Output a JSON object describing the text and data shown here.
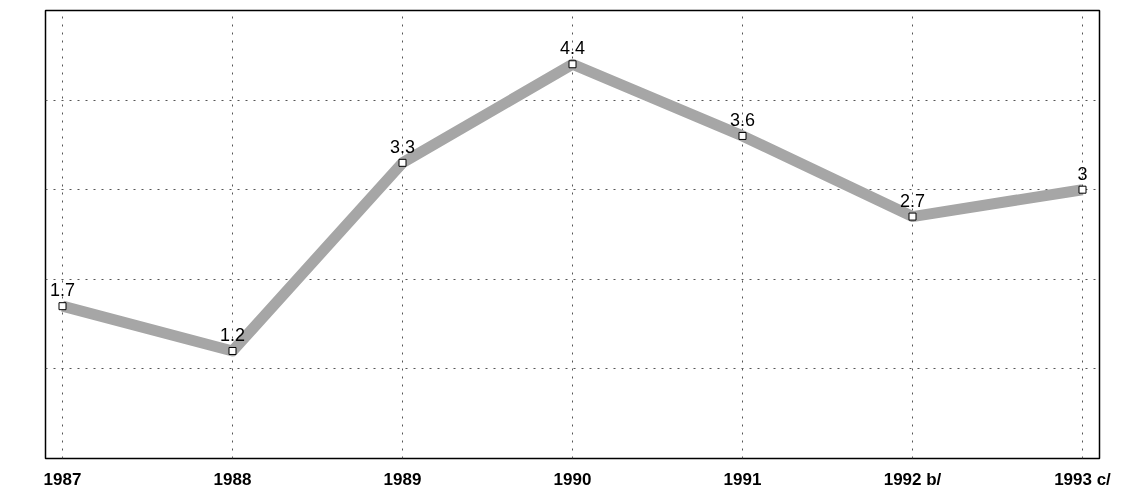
{
  "chart_data": {
    "type": "line",
    "categories": [
      "1987",
      "1988",
      "1989",
      "1990",
      "1991",
      "1992 b/",
      "1993 c/"
    ],
    "series": [
      {
        "color": "#a6a6a6",
        "values": [
          1.7,
          1.2,
          3.3,
          4.4,
          3.6,
          2.7,
          3
        ]
      }
    ],
    "ylim": [
      0,
      5
    ],
    "yticks": [
      {
        "value": 1,
        "label": null
      },
      {
        "value": 2,
        "label": null
      },
      {
        "value": 3,
        "label": null
      },
      {
        "value": 4,
        "label": null
      }
    ],
    "grid": true,
    "marker": "square",
    "line_style": "solid",
    "data_labels": true,
    "tick_labels": "x"
  }
}
